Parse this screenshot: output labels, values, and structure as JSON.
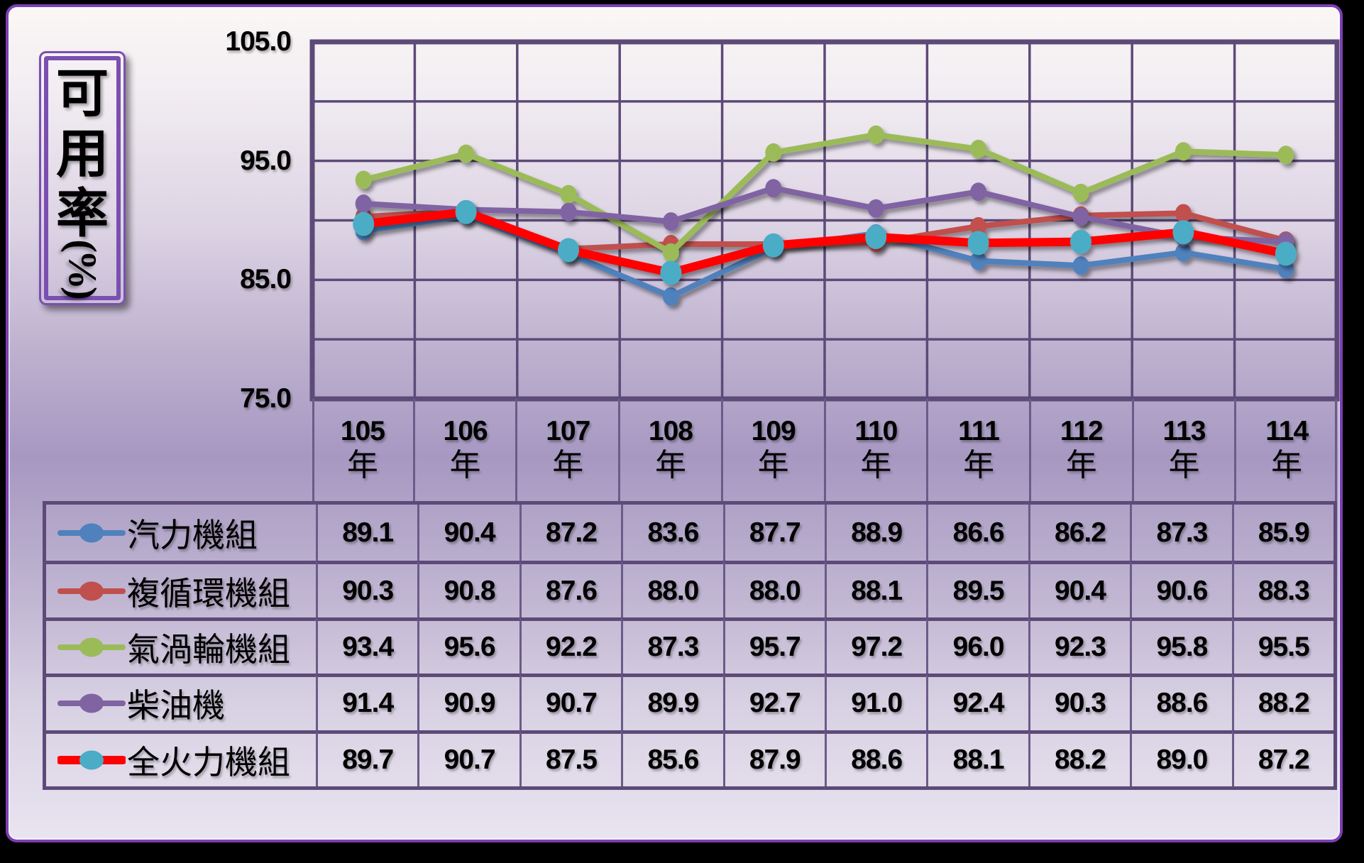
{
  "y_axis": {
    "title_chars": [
      "可",
      "用",
      "率"
    ],
    "title_suffix": "(%)",
    "ticks": [
      "105.0",
      "95.0",
      "85.0",
      "75.0"
    ],
    "tick_values": [
      105,
      95,
      85,
      75
    ]
  },
  "x_axis": {
    "year_suffix": "年",
    "years": [
      "105",
      "106",
      "107",
      "108",
      "109",
      "110",
      "111",
      "112",
      "113",
      "114"
    ]
  },
  "colors": {
    "frame_border": "#7b3fb3",
    "grid_line": "#5d4a78",
    "table_vertical_line": "#6b5b88",
    "background_top": "#faf7f5",
    "background_middle": "#a698c1",
    "background_bottom": "#e9e4f0",
    "text": "#000000"
  },
  "chart_data": {
    "type": "line",
    "title": "",
    "ylabel": "可用率(%)",
    "xlabel": "",
    "ylim": [
      75,
      105
    ],
    "y_tick_step": 10,
    "y_grid_step": 5,
    "grid": true,
    "legend_position": "table-left",
    "categories": [
      "105年",
      "106年",
      "107年",
      "108年",
      "109年",
      "110年",
      "111年",
      "112年",
      "113年",
      "114年"
    ],
    "series": [
      {
        "key": "steam-units",
        "name": "汽力機組",
        "color": "#4F81BD",
        "marker_color": "#4F81BD",
        "line_width": 8,
        "marker_rx": 11.5,
        "marker_ry": 13,
        "values": [
          89.1,
          90.4,
          87.2,
          83.6,
          87.7,
          88.9,
          86.6,
          86.2,
          87.3,
          85.9
        ]
      },
      {
        "key": "combined-cycle-units",
        "name": "複循環機組",
        "color": "#C0504D",
        "marker_color": "#C0504D",
        "line_width": 8,
        "marker_rx": 11.5,
        "marker_ry": 13,
        "values": [
          90.3,
          90.8,
          87.6,
          88.0,
          88.0,
          88.1,
          89.5,
          90.4,
          90.6,
          88.3
        ]
      },
      {
        "key": "gas-turbine-units",
        "name": "氣渦輪機組",
        "color": "#9BBB59",
        "marker_color": "#9BBB59",
        "line_width": 8,
        "marker_rx": 11.5,
        "marker_ry": 13,
        "values": [
          93.4,
          95.6,
          92.2,
          87.3,
          95.7,
          97.2,
          96.0,
          92.3,
          95.8,
          95.5
        ]
      },
      {
        "key": "diesel-units",
        "name": "柴油機",
        "color": "#8064A2",
        "marker_color": "#8064A2",
        "line_width": 8,
        "marker_rx": 11.5,
        "marker_ry": 13,
        "values": [
          91.4,
          90.9,
          90.7,
          89.9,
          92.7,
          91.0,
          92.4,
          90.3,
          88.6,
          88.2
        ]
      },
      {
        "key": "all-thermal-units",
        "name": "全火力機組",
        "color": "#FF0000",
        "marker_color": "#4BACC6",
        "line_width": 12,
        "marker_rx": 15,
        "marker_ry": 17,
        "values": [
          89.7,
          90.7,
          87.5,
          85.6,
          87.9,
          88.6,
          88.1,
          88.2,
          89.0,
          87.2
        ]
      }
    ]
  }
}
